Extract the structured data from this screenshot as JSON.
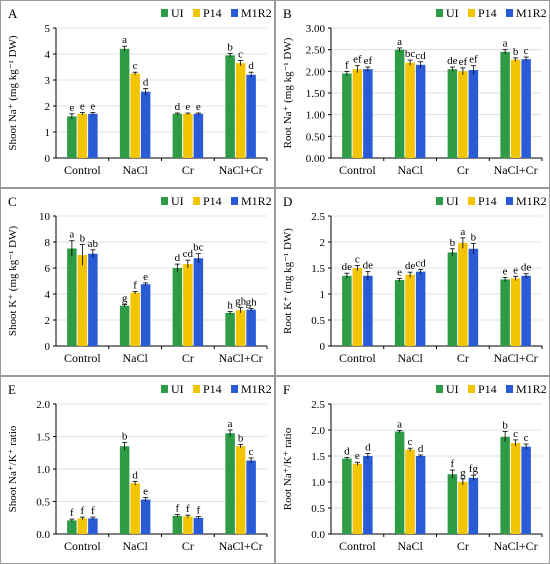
{
  "series_colors": [
    "#2e9b45",
    "#f2c500",
    "#2a5bd7"
  ],
  "chart_data": [
    {
      "panel": "A",
      "type": "bar",
      "ylabel": "Shoot Na⁺ (mg kg⁻¹ DW)",
      "ylim": [
        0,
        5
      ],
      "ticks": [
        0,
        1,
        2,
        3,
        4,
        5
      ],
      "categories": [
        "Control",
        "NaCl",
        "Cr",
        "NaCl+Cr"
      ],
      "legend": "top-right",
      "series": [
        {
          "name": "UI",
          "values": [
            1.6,
            4.2,
            1.7,
            3.95
          ],
          "errors": [
            0.1,
            0.1,
            0.03,
            0.07
          ],
          "letters": [
            "e",
            "a",
            "d",
            "b"
          ]
        },
        {
          "name": "P14",
          "values": [
            1.7,
            3.25,
            1.7,
            3.65
          ],
          "errors": [
            0.05,
            0.05,
            0.03,
            0.1
          ],
          "letters": [
            "e",
            "c",
            "e",
            "c"
          ]
        },
        {
          "name": "M1R2",
          "values": [
            1.7,
            2.55,
            1.7,
            3.2
          ],
          "errors": [
            0.05,
            0.12,
            0.03,
            0.1
          ],
          "letters": [
            "e",
            "d",
            "e",
            "d"
          ]
        }
      ]
    },
    {
      "panel": "B",
      "type": "bar",
      "ylabel": "Root Na⁺ (mg kg⁻¹ DW)",
      "ylim": [
        0,
        3
      ],
      "ticks": [
        0,
        0.5,
        1,
        1.5,
        2,
        2.5,
        3
      ],
      "tick_labels": [
        "0.00",
        "0.50",
        "1.00",
        "1.50",
        "2.00",
        "2.50",
        "3.00"
      ],
      "categories": [
        "Control",
        "NaCl",
        "Cr",
        "NaCl+Cr"
      ],
      "legend": "top-right",
      "series": [
        {
          "name": "UI",
          "values": [
            1.95,
            2.5,
            2.05,
            2.45
          ],
          "errors": [
            0.05,
            0.04,
            0.05,
            0.05
          ],
          "letters": [
            "f",
            "a",
            "de",
            "a"
          ]
        },
        {
          "name": "P14",
          "values": [
            2.05,
            2.2,
            2.0,
            2.27
          ],
          "errors": [
            0.08,
            0.06,
            0.08,
            0.04
          ],
          "letters": [
            "ef",
            "bc",
            "ef",
            "b"
          ]
        },
        {
          "name": "M1R2",
          "values": [
            2.05,
            2.15,
            2.03,
            2.28
          ],
          "errors": [
            0.05,
            0.07,
            0.1,
            0.05
          ],
          "letters": [
            "ef",
            "cd",
            "ef",
            "c"
          ]
        }
      ]
    },
    {
      "panel": "C",
      "type": "bar",
      "ylabel": "Shoot K⁺ (mg kg⁻¹ DW)",
      "ylim": [
        0,
        10
      ],
      "ticks": [
        0,
        2,
        4,
        6,
        8,
        10
      ],
      "categories": [
        "Control",
        "NaCl",
        "Cr",
        "NaCl+Cr"
      ],
      "legend": "top-right",
      "series": [
        {
          "name": "UI",
          "values": [
            7.5,
            3.1,
            6.0,
            2.55
          ],
          "errors": [
            0.6,
            0.1,
            0.3,
            0.1
          ],
          "letters": [
            "a",
            "g",
            "d",
            "h"
          ]
        },
        {
          "name": "P14",
          "values": [
            7.0,
            4.1,
            6.3,
            2.75
          ],
          "errors": [
            0.8,
            0.1,
            0.3,
            0.2
          ],
          "letters": [
            "b",
            "f",
            "cd",
            "gh"
          ]
        },
        {
          "name": "M1R2",
          "values": [
            7.1,
            4.75,
            6.75,
            2.8
          ],
          "errors": [
            0.3,
            0.1,
            0.35,
            0.1
          ],
          "letters": [
            "ab",
            "e",
            "bc",
            "gh"
          ]
        }
      ]
    },
    {
      "panel": "D",
      "type": "bar",
      "ylabel": "Root K⁺ (mg kg⁻¹ DW)",
      "ylim": [
        0,
        2.5
      ],
      "ticks": [
        0,
        0.5,
        1,
        1.5,
        2,
        2.5
      ],
      "categories": [
        "Control",
        "NaCl",
        "Cr",
        "NaCl+Cr"
      ],
      "legend": "top-right",
      "series": [
        {
          "name": "UI",
          "values": [
            1.35,
            1.27,
            1.8,
            1.28
          ],
          "errors": [
            0.05,
            0.03,
            0.07,
            0.04
          ],
          "letters": [
            "de",
            "e",
            "b",
            "e"
          ]
        },
        {
          "name": "P14",
          "values": [
            1.5,
            1.37,
            1.98,
            1.3
          ],
          "errors": [
            0.05,
            0.05,
            0.1,
            0.04
          ],
          "letters": [
            "c",
            "de",
            "a",
            "e"
          ]
        },
        {
          "name": "M1R2",
          "values": [
            1.35,
            1.43,
            1.87,
            1.35
          ],
          "errors": [
            0.08,
            0.04,
            0.1,
            0.04
          ],
          "letters": [
            "de",
            "cd",
            "b",
            "de"
          ]
        }
      ]
    },
    {
      "panel": "E",
      "type": "bar",
      "ylabel": "Shoot Na⁺/K⁺ ratio",
      "ylim": [
        0,
        2
      ],
      "ticks": [
        0,
        0.5,
        1,
        1.5,
        2
      ],
      "tick_labels": [
        "0.0",
        "0.5",
        "1.0",
        "1.5",
        "2.0"
      ],
      "categories": [
        "Control",
        "NaCl",
        "Cr",
        "NaCl+Cr"
      ],
      "legend": "top-right",
      "series": [
        {
          "name": "UI",
          "values": [
            0.21,
            1.35,
            0.28,
            1.55
          ],
          "errors": [
            0.02,
            0.06,
            0.02,
            0.05
          ],
          "letters": [
            "f",
            "b",
            "f",
            "a"
          ]
        },
        {
          "name": "P14",
          "values": [
            0.24,
            0.78,
            0.27,
            1.35
          ],
          "errors": [
            0.02,
            0.03,
            0.02,
            0.03
          ],
          "letters": [
            "f",
            "d",
            "f",
            "b"
          ]
        },
        {
          "name": "M1R2",
          "values": [
            0.24,
            0.53,
            0.25,
            1.13
          ],
          "errors": [
            0.02,
            0.03,
            0.02,
            0.04
          ],
          "letters": [
            "f",
            "e",
            "f",
            "c"
          ]
        }
      ]
    },
    {
      "panel": "F",
      "type": "bar",
      "ylabel": "Root Na⁺/K⁺ ratio",
      "ylim": [
        0,
        2.5
      ],
      "ticks": [
        0,
        0.5,
        1,
        1.5,
        2,
        2.5
      ],
      "tick_labels": [
        "0.0",
        "0.5",
        "1.0",
        "1.5",
        "2.0",
        "2.5"
      ],
      "categories": [
        "Control",
        "NaCl",
        "Cr",
        "NaCl+Cr"
      ],
      "legend": "top-right",
      "series": [
        {
          "name": "UI",
          "values": [
            1.45,
            1.97,
            1.15,
            1.87
          ],
          "errors": [
            0.02,
            0.02,
            0.08,
            0.1
          ],
          "letters": [
            "d",
            "a",
            "f",
            "b"
          ]
        },
        {
          "name": "P14",
          "values": [
            1.35,
            1.62,
            1.0,
            1.75
          ],
          "errors": [
            0.03,
            0.03,
            0.06,
            0.06
          ],
          "letters": [
            "e",
            "c",
            "g",
            "c"
          ]
        },
        {
          "name": "M1R2",
          "values": [
            1.5,
            1.5,
            1.08,
            1.68
          ],
          "errors": [
            0.05,
            0.02,
            0.05,
            0.05
          ],
          "letters": [
            "d",
            "d",
            "fg",
            "c"
          ]
        }
      ]
    }
  ]
}
